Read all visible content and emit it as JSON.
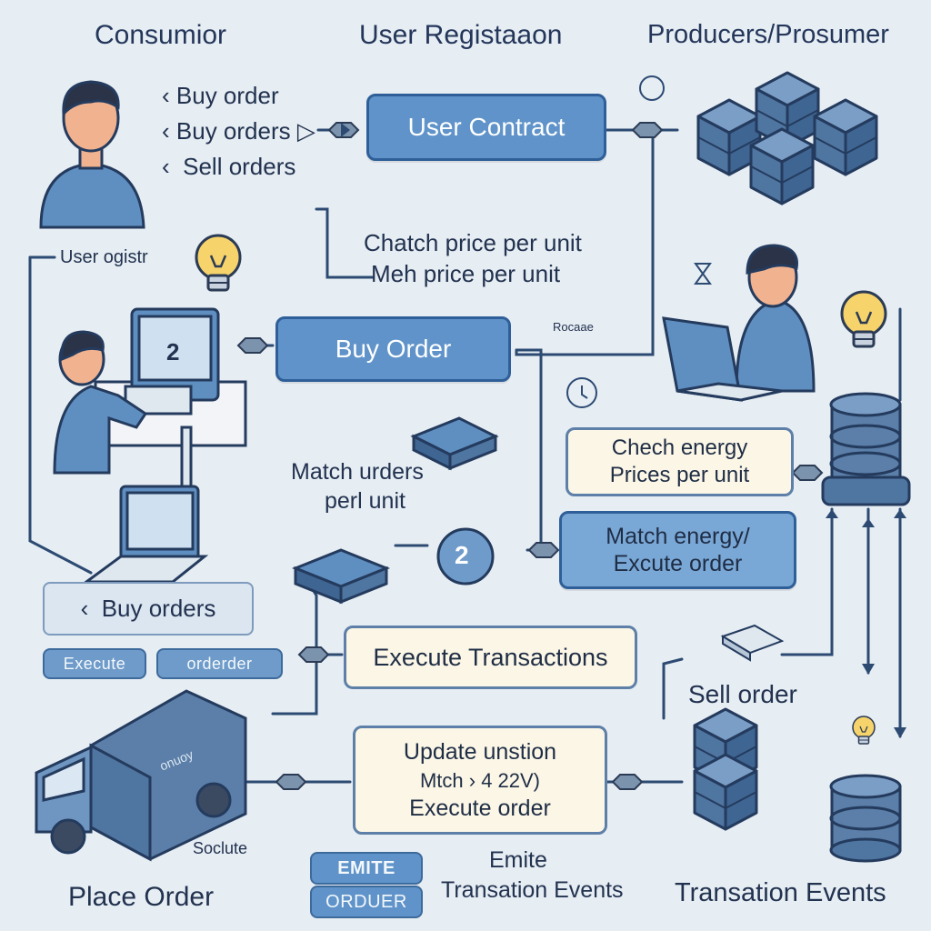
{
  "headers": {
    "consumer": "Consumior",
    "registration": "User Registaaon",
    "producers": "Producers/Prosumer"
  },
  "consumer_orders": [
    "Buy order",
    "Buy orders",
    "Sell orders"
  ],
  "user_contract": "User Contract",
  "user_registration_label": "User ogistr",
  "match_price": [
    "Chatch price per unit",
    "Meh price per unit"
  ],
  "small_label_right": "Rocaae",
  "buy_order": "Buy Order",
  "match_orders": [
    "Match urders",
    "perl unit"
  ],
  "check_energy": [
    "Chech energy",
    "Prices per unit"
  ],
  "match_energy": [
    "Match energy/",
    "Excute order"
  ],
  "buy_orders_box": "Buy orders",
  "execute_pill": "Execute",
  "orderder_pill": "orderder",
  "execute_transactions": "Execute Transactions",
  "sell_order": "Sell order",
  "update_box": [
    "Update unstion",
    "Mtch  ›  4 22V)",
    "Execute order"
  ],
  "truck_label": "onuoy",
  "monitor_number": "2",
  "node_number": "2",
  "small_left_label": "Soclute",
  "place_order": "Place Order",
  "emite_pill": "EMITE",
  "orduer_pill": "ORDUER",
  "emite_transaction": [
    "Emite",
    "Transation Events"
  ],
  "transaction_events": "Transation Events",
  "colors": {
    "background": "#e6edf3",
    "box_blue": "#5f93c9",
    "box_blue_border": "#2f5f98",
    "cream": "#fbf6e6",
    "line": "#2c4a72",
    "cube_face": "#5b7fa8"
  }
}
